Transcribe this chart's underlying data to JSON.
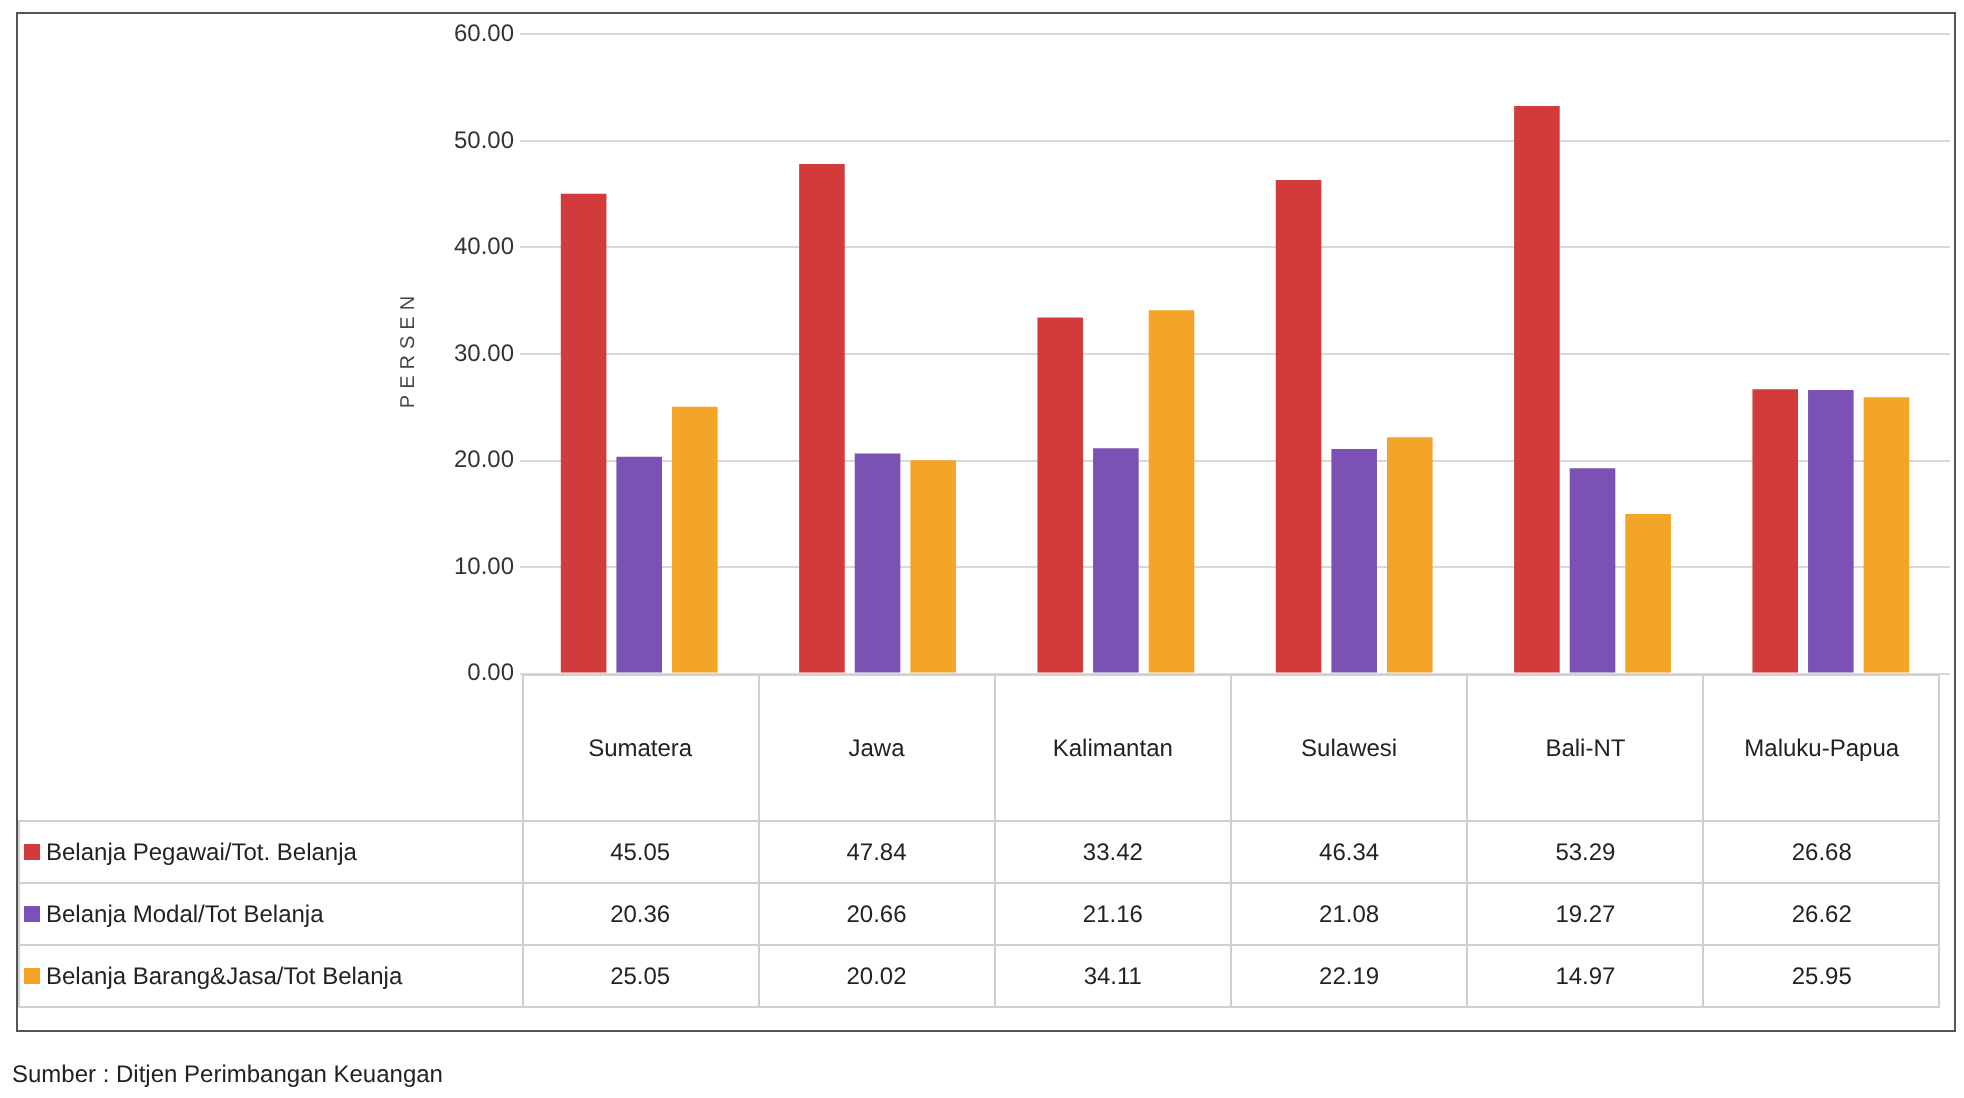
{
  "chart_data": {
    "type": "bar",
    "ylabel": "PERSEN",
    "categories": [
      "Sumatera",
      "Jawa",
      "Kalimantan",
      "Sulawesi",
      "Bali-NT",
      "Maluku-Papua"
    ],
    "series": [
      {
        "name": "Belanja Pegawai/Tot. Belanja",
        "color": "#d23b3b",
        "values": [
          45.05,
          47.84,
          33.42,
          46.34,
          53.29,
          26.68
        ]
      },
      {
        "name": "Belanja Modal/Tot Belanja",
        "color": "#7b52b3",
        "values": [
          20.36,
          20.66,
          21.16,
          21.08,
          19.27,
          26.62
        ]
      },
      {
        "name": "Belanja Barang&Jasa/Tot Belanja",
        "color": "#f5a42a",
        "values": [
          25.05,
          20.02,
          34.11,
          22.19,
          14.97,
          25.95
        ]
      }
    ],
    "ylim": [
      0,
      60
    ],
    "yticks": [
      {
        "value": 0,
        "label": "0.00"
      },
      {
        "value": 10,
        "label": "10.00"
      },
      {
        "value": 20,
        "label": "20.00"
      },
      {
        "value": 30,
        "label": "30.00"
      },
      {
        "value": 40,
        "label": "40.00"
      },
      {
        "value": 50,
        "label": "50.00"
      },
      {
        "value": 60,
        "label": "60.00"
      }
    ],
    "grid": "y",
    "legend": "bottom",
    "data_labels": true,
    "annotations": [
      "Sumber : Ditjen Perimbangan Keuangan"
    ]
  }
}
